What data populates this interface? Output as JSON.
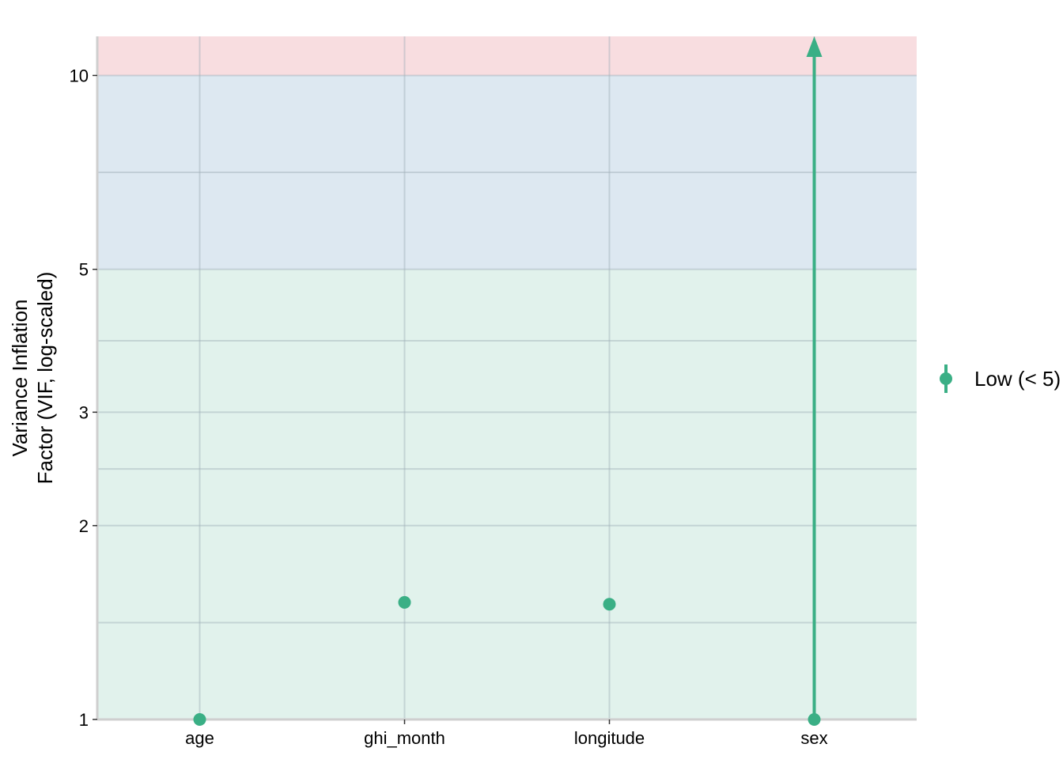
{
  "chart_data": {
    "type": "scatter",
    "title": "",
    "xlabel": "",
    "ylabel_lines": [
      "Variance Inflation",
      "Factor (VIF, log-scaled)"
    ],
    "y_scale": "log",
    "ylim": [
      1,
      11.5
    ],
    "y_ticks": [
      1,
      2,
      3,
      5,
      10
    ],
    "y_minor_ticks": [
      1.414,
      2.449,
      3.873,
      7.071
    ],
    "categories": [
      "age",
      "ghi_month",
      "longitude",
      "sex"
    ],
    "series": [
      {
        "name": "Low (< 5)",
        "color": "#3aaf85",
        "points": [
          {
            "x": "age",
            "y": 1.0
          },
          {
            "x": "ghi_month",
            "y": 1.52
          },
          {
            "x": "longitude",
            "y": 1.51
          },
          {
            "x": "sex",
            "y": 1.0,
            "ci_low": 1.0,
            "ci_high_truncated": true
          }
        ]
      }
    ],
    "bands": [
      {
        "level": "low",
        "from": 1,
        "to": 5,
        "color": "#e1f2ec"
      },
      {
        "level": "moderate",
        "from": 5,
        "to": 10,
        "color": "#dde8f1"
      },
      {
        "level": "high",
        "from": 10,
        "to": 11.5,
        "color": "#f8dde0"
      }
    ],
    "grid": true,
    "legend_position": "right",
    "legend_entries": [
      "Low (< 5)"
    ]
  }
}
